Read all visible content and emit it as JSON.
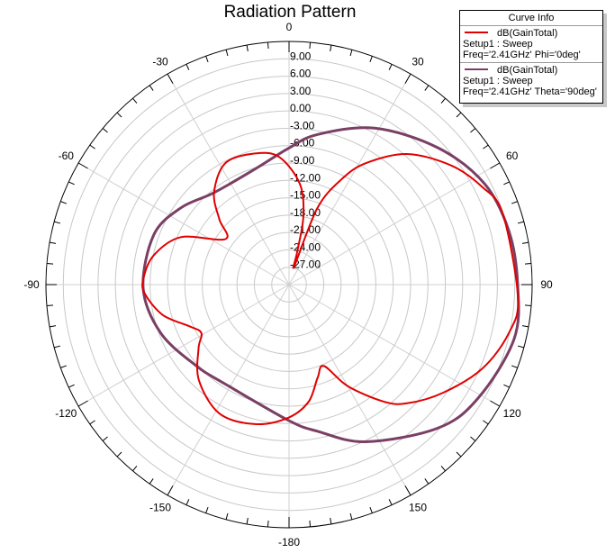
{
  "chart_data": {
    "type": "polar-line",
    "title": "Radiation Pattern",
    "radial_range": [
      -30,
      12
    ],
    "radial_ticks": [
      9,
      6,
      3,
      0,
      -3,
      -6,
      -9,
      -12,
      -15,
      -18,
      -21,
      -24,
      -27
    ],
    "radial_tick_labels": [
      "9.00",
      "6.00",
      "3.00",
      "0.00",
      "-3.00",
      "-6.00",
      "-9.00",
      "-12.00",
      "-15.00",
      "-18.00",
      "-21.00",
      "-24.00",
      "-27.00"
    ],
    "angle_ticks": [
      0,
      30,
      60,
      90,
      120,
      150,
      180,
      -150,
      -120,
      -90,
      -60,
      -30
    ],
    "angle_tick_labels": [
      "0",
      "30",
      "60",
      "90",
      "120",
      "150",
      "-180",
      "-150",
      "-120",
      "-90",
      "-60",
      "-30"
    ],
    "grid": true,
    "legend": {
      "title": "Curve Info",
      "placement": "top-right"
    },
    "series": [
      {
        "name": "dB(GainTotal)",
        "setup": "Setup1 : Sweep",
        "condition": "Freq='2.41GHz' Phi='0deg'",
        "color": "#e00000",
        "points": [
          [
            16,
            -26.6
          ],
          [
            20.4,
            -15.8
          ],
          [
            26.6,
            -9.6
          ],
          [
            32.3,
            -5.2
          ],
          [
            42.1,
            0.4
          ],
          [
            53.8,
            4.8
          ],
          [
            63.2,
            7.4
          ],
          [
            71.7,
            8.9
          ],
          [
            93.1,
            9.6
          ],
          [
            102.4,
            8.9
          ],
          [
            113.5,
            6.4
          ],
          [
            125.1,
            2.5
          ],
          [
            135.2,
            -1.1
          ],
          [
            141,
            -4.0
          ],
          [
            149.9,
            -9.7
          ],
          [
            156.8,
            -14.7
          ],
          [
            162.9,
            -13.2
          ],
          [
            170.5,
            -9.5
          ],
          [
            180.4,
            -7.0
          ],
          [
            193.7,
            -5.2
          ],
          [
            208.4,
            -4.7
          ],
          [
            223.3,
            -7.3
          ],
          [
            234.9,
            -10.9
          ],
          [
            241.1,
            -12.7
          ],
          [
            247.1,
            -11.4
          ],
          [
            256.4,
            -7.6
          ],
          [
            266.1,
            -5.1
          ],
          [
            272.1,
            -4.8
          ],
          [
            282.3,
            -6.1
          ],
          [
            293.7,
            -9.6
          ],
          [
            305.7,
            -16.5
          ],
          [
            313.1,
            -13.5
          ],
          [
            320.8,
            -9.5
          ],
          [
            332.4,
            -6.3
          ],
          [
            345.5,
            -6.6
          ],
          [
            355.6,
            -7.9
          ],
          [
            6.1,
            -12.5
          ],
          [
            11.9,
            -18.0
          ],
          [
            14,
            -24.3
          ]
        ]
      },
      {
        "name": "dB(GainTotal)",
        "setup": "Setup1 : Sweep",
        "condition": "Freq='2.41GHz' Theta='90deg'",
        "color": "#7a3f64",
        "points": [
          [
            0,
            -6.4
          ],
          [
            10.8,
            -3.6
          ],
          [
            28.7,
            0.8
          ],
          [
            47.3,
            4.9
          ],
          [
            62.7,
            8.0
          ],
          [
            76.5,
            9.1
          ],
          [
            90,
            9.5
          ],
          [
            103.6,
            10.0
          ],
          [
            121,
            8.1
          ],
          [
            134,
            5.7
          ],
          [
            154,
            0.2
          ],
          [
            169,
            -4.2
          ],
          [
            180,
            -6.5
          ],
          [
            212.6,
            -9.6
          ],
          [
            228.8,
            -8.7
          ],
          [
            249.4,
            -6.3
          ],
          [
            268.6,
            -4.8
          ],
          [
            290.3,
            -5.1
          ],
          [
            305.4,
            -7.1
          ],
          [
            320.8,
            -9.5
          ],
          [
            343.6,
            -9.2
          ]
        ]
      }
    ]
  }
}
